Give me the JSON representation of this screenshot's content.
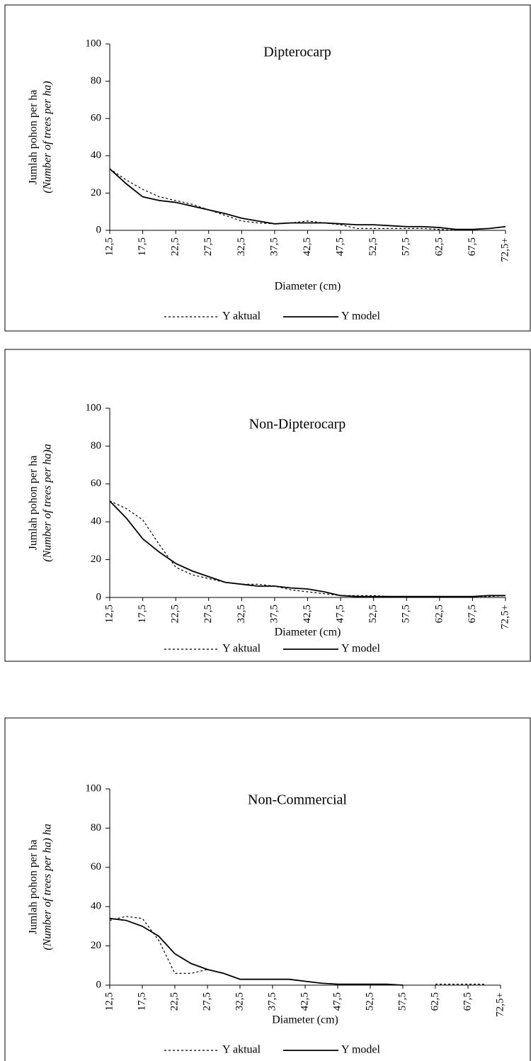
{
  "chart_data": [
    {
      "type": "line",
      "title": "Dipterocarp",
      "xlabel": "Diameter (cm)",
      "ylabel": [
        "Jumlah pohon per ha",
        "(Number of trees per ha)"
      ],
      "x": [
        12.5,
        15,
        17.5,
        20,
        22.5,
        25,
        27.5,
        30,
        32.5,
        35,
        37.5,
        40,
        42.5,
        45,
        47.5,
        50,
        52.5,
        55,
        57.5,
        60,
        62.5,
        65,
        67.5,
        70,
        72.5
      ],
      "series": [
        {
          "name": "Y aktual",
          "color": "#000000",
          "dash": true,
          "values": [
            33,
            27,
            22,
            18,
            16,
            14,
            11,
            8,
            5,
            4,
            3.5,
            4,
            5,
            4,
            3,
            1,
            1,
            1,
            1,
            1,
            0.5,
            0,
            0.5,
            1,
            2
          ]
        },
        {
          "name": "Y model",
          "color": "#000000",
          "dash": false,
          "values": [
            33,
            25,
            18,
            16,
            15,
            13,
            11,
            9,
            6.5,
            5,
            3.5,
            4,
            4,
            4,
            3.5,
            3,
            3,
            2.5,
            2,
            2,
            1.5,
            0.5,
            0.5,
            1,
            2
          ]
        }
      ],
      "xlim": [
        12.5,
        72.5
      ],
      "ylim": [
        0,
        100
      ],
      "yticks": [
        0,
        20,
        40,
        60,
        80,
        100
      ],
      "xticks": [
        {
          "value": 12.5,
          "label": "12,5"
        },
        {
          "value": 17.5,
          "label": "17,5"
        },
        {
          "value": 22.5,
          "label": "22,5"
        },
        {
          "value": 27.5,
          "label": "27,5"
        },
        {
          "value": 32.5,
          "label": "32,5"
        },
        {
          "value": 37.5,
          "label": "37,5"
        },
        {
          "value": 42.5,
          "label": "42,5"
        },
        {
          "value": 47.5,
          "label": "47,5"
        },
        {
          "value": 52.5,
          "label": "52,5"
        },
        {
          "value": 57.5,
          "label": "57,5"
        },
        {
          "value": 62.5,
          "label": "62,5"
        },
        {
          "value": 67.5,
          "label": "67,5"
        },
        {
          "value": 72.5,
          "label": "72,5+"
        }
      ]
    },
    {
      "type": "line",
      "title": "Non-Dipterocarp",
      "xlabel": "Diameter (cm)",
      "ylabel": [
        "Jumlah pohon per ha",
        "(Number of trees per ha)a"
      ],
      "x": [
        12.5,
        15,
        17.5,
        20,
        22.5,
        25,
        27.5,
        30,
        32.5,
        35,
        37.5,
        40,
        42.5,
        45,
        47.5,
        50,
        52.5,
        55,
        57.5,
        60,
        62.5,
        65,
        67.5,
        70,
        72.5
      ],
      "series": [
        {
          "name": "Y aktual",
          "color": "#000000",
          "dash": true,
          "values": [
            51,
            47,
            41,
            28,
            16,
            12,
            10,
            8,
            7,
            7,
            6,
            4,
            3,
            2,
            1,
            1,
            1,
            0.5,
            0.5,
            0.5,
            0.5,
            0.5,
            0.5,
            0.5,
            1
          ]
        },
        {
          "name": "Y model",
          "color": "#000000",
          "dash": false,
          "values": [
            51,
            42,
            31,
            24,
            18,
            14,
            11,
            8,
            7,
            6,
            6,
            5,
            4.5,
            3,
            1,
            0.5,
            0.5,
            0.5,
            0.5,
            0.5,
            0.5,
            0.5,
            0.5,
            1,
            1
          ]
        }
      ],
      "xlim": [
        12.5,
        72.5
      ],
      "ylim": [
        0,
        100
      ],
      "yticks": [
        0,
        20,
        40,
        60,
        80,
        100
      ],
      "xticks": [
        {
          "value": 12.5,
          "label": "12,5"
        },
        {
          "value": 17.5,
          "label": "17,5"
        },
        {
          "value": 22.5,
          "label": "22,5"
        },
        {
          "value": 27.5,
          "label": "27,5"
        },
        {
          "value": 32.5,
          "label": "32,5"
        },
        {
          "value": 37.5,
          "label": "37,5"
        },
        {
          "value": 42.5,
          "label": "42,5"
        },
        {
          "value": 47.5,
          "label": "47,5"
        },
        {
          "value": 52.5,
          "label": "52,5"
        },
        {
          "value": 57.5,
          "label": "57,5"
        },
        {
          "value": 62.5,
          "label": "62,5"
        },
        {
          "value": 67.5,
          "label": "67,5"
        },
        {
          "value": 72.5,
          "label": "72,5+"
        }
      ]
    },
    {
      "type": "line",
      "title": "Non-Commercial",
      "xlabel": "Diameter (cm)",
      "ylabel": [
        "Jumlah pohon per ha",
        "(Number of trees per ha) ha"
      ],
      "x": [
        12.5,
        15,
        17.5,
        20,
        22.5,
        25,
        27.5,
        30,
        32.5,
        35,
        37.5,
        40,
        42.5,
        45,
        47.5,
        50,
        52.5,
        55,
        57.5,
        60,
        62.5,
        65,
        67.5,
        70,
        72.5
      ],
      "series": [
        {
          "name": "Y aktual",
          "color": "#000000",
          "dash": true,
          "values": [
            33,
            35,
            34,
            23,
            6,
            6,
            8,
            6,
            3,
            3,
            3,
            3,
            2,
            1,
            0.5,
            0.5,
            0.5,
            0.5,
            null,
            null,
            0.5,
            0.5,
            0.5,
            0.5,
            null
          ]
        },
        {
          "name": "Y model",
          "color": "#000000",
          "dash": false,
          "values": [
            34,
            33,
            30,
            25,
            16,
            11,
            8,
            6,
            3,
            3,
            3,
            3,
            2,
            1,
            0.5,
            0.5,
            0.5,
            0.5,
            0,
            null,
            null,
            null,
            null,
            null,
            null
          ]
        }
      ],
      "xlim": [
        12.5,
        72.5
      ],
      "ylim": [
        0,
        100
      ],
      "yticks": [
        0,
        20,
        40,
        60,
        80,
        100
      ],
      "xticks": [
        {
          "value": 12.5,
          "label": "12,5"
        },
        {
          "value": 17.5,
          "label": "17,5"
        },
        {
          "value": 22.5,
          "label": "22,5"
        },
        {
          "value": 27.5,
          "label": "27,5"
        },
        {
          "value": 32.5,
          "label": "32,5"
        },
        {
          "value": 37.5,
          "label": "37,5"
        },
        {
          "value": 42.5,
          "label": "42,5"
        },
        {
          "value": 47.5,
          "label": "47,5"
        },
        {
          "value": 52.5,
          "label": "52,5"
        },
        {
          "value": 57.5,
          "label": "57,5"
        },
        {
          "value": 62.5,
          "label": "62,5"
        },
        {
          "value": 67.5,
          "label": "67,5"
        },
        {
          "value": 72.5,
          "label": "72,5+"
        }
      ]
    }
  ]
}
